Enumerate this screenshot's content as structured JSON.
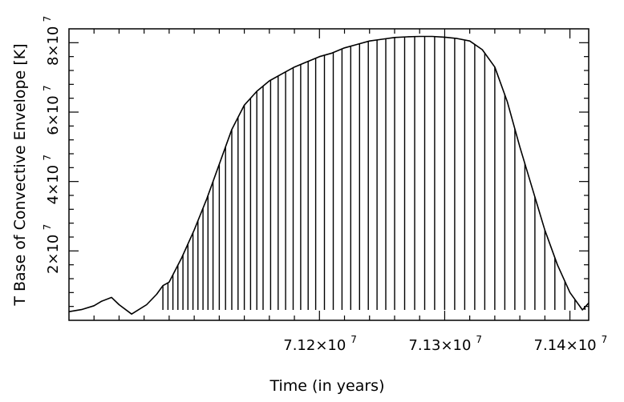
{
  "chart_data": {
    "type": "line",
    "title": "",
    "xlabel": "Time (in years)",
    "ylabel": "T Base of Convective Envelope [K]",
    "xlim": [
      71000000,
      71415000
    ],
    "ylim": [
      0,
      84000000
    ],
    "grid": false,
    "legend": "none",
    "x_ticks": [
      {
        "value": 71200000,
        "mantissa": "7.12",
        "exponent": "7"
      },
      {
        "value": 71300000,
        "mantissa": "7.13",
        "exponent": "7"
      },
      {
        "value": 71400000,
        "mantissa": "7.14",
        "exponent": "7"
      }
    ],
    "y_ticks": [
      {
        "value": 20000000,
        "mantissa": "2",
        "exponent": "7"
      },
      {
        "value": 40000000,
        "mantissa": "4",
        "exponent": "7"
      },
      {
        "value": 60000000,
        "mantissa": "6",
        "exponent": "7"
      },
      {
        "value": 80000000,
        "mantissa": "8",
        "exponent": "7"
      }
    ],
    "series": [
      {
        "envelope": {
          "x": [
            71000000,
            71010000,
            71020000,
            71026000,
            71034000,
            71040000,
            71050000,
            71062000,
            71070000,
            71075000,
            71080000,
            71090000,
            71100000,
            71110000,
            71120000,
            71130000,
            71140000,
            71150000,
            71160000,
            71170000,
            71180000,
            71190000,
            71200000,
            71210000,
            71220000,
            71230000,
            71240000,
            71250000,
            71260000,
            71270000,
            71280000,
            71290000,
            71300000,
            71310000,
            71320000,
            71330000,
            71340000,
            71350000,
            71360000,
            71370000,
            71380000,
            71390000,
            71400000,
            71410000,
            71415000
          ],
          "y": [
            2500000,
            3100000,
            4200000,
            5500000,
            6600000,
            4500000,
            1800000,
            4500000,
            7500000,
            10000000,
            11000000,
            18000000,
            26000000,
            35000000,
            45000000,
            55000000,
            62000000,
            66000000,
            69000000,
            71000000,
            73000000,
            74500000,
            76000000,
            77000000,
            78500000,
            79500000,
            80500000,
            81000000,
            81500000,
            81700000,
            81800000,
            81800000,
            81600000,
            81200000,
            80500000,
            78000000,
            73000000,
            63000000,
            50000000,
            38000000,
            26000000,
            16000000,
            8000000,
            3000000,
            5000000
          ]
        },
        "dips": {
          "x": [
            71075000,
            71079000,
            71083000,
            71087000,
            71091000,
            71095000,
            71099000,
            71103000,
            71107000,
            71111000,
            71115000,
            71120000,
            71125000,
            71130000,
            71135000,
            71140000,
            71145000,
            71150000,
            71155000,
            71161000,
            71167000,
            71173000,
            71179000,
            71185000,
            71191000,
            71197000,
            71204000,
            71211000,
            71218000,
            71225000,
            71232000,
            71239000,
            71246000,
            71253000,
            71260000,
            71268000,
            71276000,
            71284000,
            71292000,
            71300000,
            71308000,
            71316000,
            71324000,
            71332000,
            71340000,
            71348000,
            71356000,
            71364000,
            71372000,
            71380000,
            71388000,
            71396000,
            71404000,
            71412000
          ],
          "min": [
            3000000,
            3000000,
            3000000,
            3000000,
            3000000,
            3000000,
            3000000,
            3000000,
            3000000,
            3000000,
            3000000,
            3000000,
            3000000,
            3000000,
            3000000,
            3000000,
            3000000,
            3000000,
            3000000,
            3000000,
            3000000,
            3000000,
            3000000,
            3000000,
            3000000,
            3000000,
            3000000,
            3000000,
            3000000,
            3000000,
            3000000,
            3000000,
            3000000,
            3000000,
            3000000,
            3000000,
            3000000,
            3000000,
            3000000,
            3000000,
            3000000,
            3000000,
            3000000,
            3000000,
            3000000,
            3000000,
            3000000,
            3000000,
            3000000,
            3000000,
            3000000,
            3000000,
            3000000,
            3000000
          ]
        }
      }
    ]
  }
}
